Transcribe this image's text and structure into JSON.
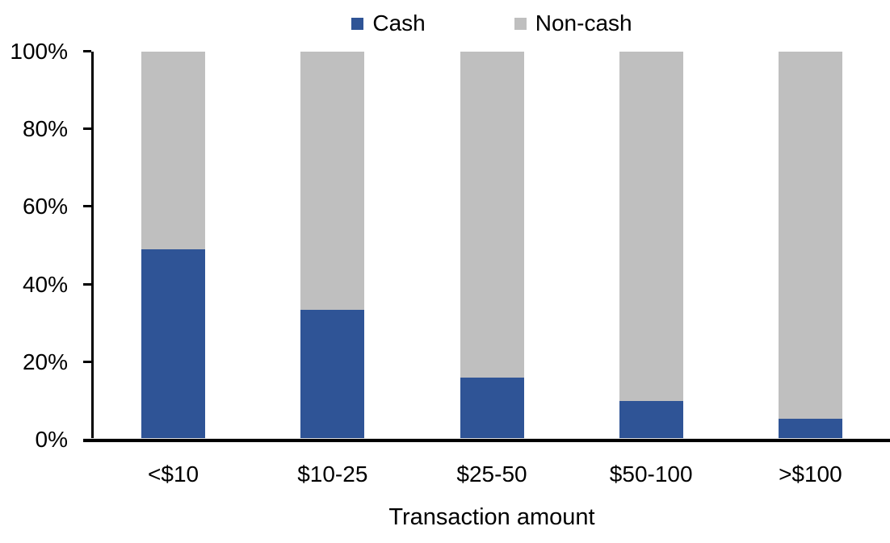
{
  "chart_data": {
    "type": "bar",
    "variant": "stacked-100-percent",
    "title": "",
    "xlabel": "Transaction amount",
    "ylabel": "",
    "categories": [
      "<$10",
      "$10-25",
      "$25-50",
      "$50-100",
      ">$100"
    ],
    "series": [
      {
        "name": "Cash",
        "color": "#2F5496",
        "values": [
          49,
          33.5,
          16,
          10,
          5.5
        ]
      },
      {
        "name": "Non-cash",
        "color": "#BFBFBF",
        "values": [
          51,
          66.5,
          84,
          90,
          94.5
        ]
      }
    ],
    "y_ticks": [
      {
        "label": "0%",
        "value": 0
      },
      {
        "label": "20%",
        "value": 20
      },
      {
        "label": "40%",
        "value": 40
      },
      {
        "label": "60%",
        "value": 60
      },
      {
        "label": "80%",
        "value": 80
      },
      {
        "label": "100%",
        "value": 100
      }
    ],
    "ylim": [
      0,
      100
    ],
    "grid": false,
    "legend_position": "top-center",
    "axis_color": "#000000",
    "background_color": "#FFFFFF"
  }
}
